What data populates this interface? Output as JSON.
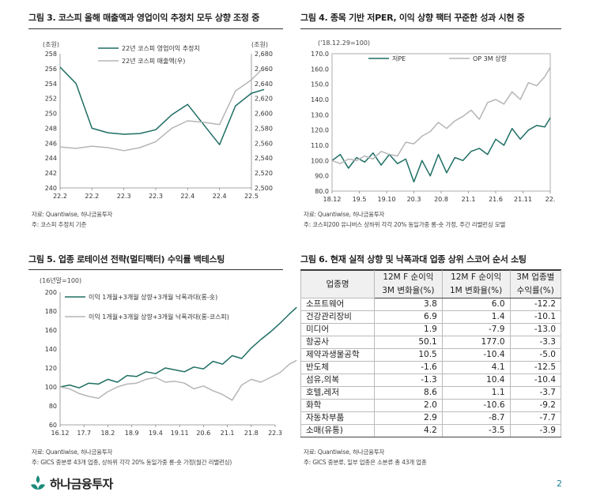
{
  "page_number": "2",
  "logo": {
    "text": "하나금융투자"
  },
  "figure3": {
    "title": "그림 3. 코스피 올해 매출액과 영업이익 추정치 모두 상향 조정 중",
    "unit_left": "(조원)",
    "unit_right": "(조원)",
    "source": "자료: Quantiwise, 하나금융투자",
    "note": "주: 코스피 추정치 기준"
  },
  "figure4": {
    "title": "그림 4. 종목 기반 저PER, 이익 상향 팩터 꾸준한 성과 시현 중",
    "unit": "('18.12.29=100)",
    "source": "자료: Quantiwise, 하나금융투자",
    "note": "주: 코스피200 유니버스 상하위 각각 20% 동일가중 롱-숏 가정, 주간 리밸런싱 모델"
  },
  "figure5": {
    "title": "그림 5. 업종 로테이션 전략(멀티팩터) 수익률 백테스팅",
    "unit": "(16년말=100)",
    "source": "자료: Quantiwise, 하나금융투자",
    "note": "주: GICS 중분류 43개 업종, 상하위 각각 20% 동일가중 롱-숏 가정(월간 리밸런싱)"
  },
  "figure6": {
    "title": "그림 6. 현재 실적 상향 및 낙폭과대 업종 상위 스코어 순서 소팅",
    "headers": {
      "col1": "업종명",
      "col2_line1": "12M F 순이익",
      "col2_line2": "3M 변화율(%)",
      "col3_line1": "12M F 순이익",
      "col3_line2": "1M 변화율(%)",
      "col4_line1": "3M 업종별",
      "col4_line2": "수익률(%)"
    },
    "rows": [
      [
        "소프트웨어",
        "3.8",
        "6.0",
        "-12.2"
      ],
      [
        "건강관리장비",
        "6.9",
        "1.4",
        "-10.1"
      ],
      [
        "미디어",
        "1.9",
        "-7.9",
        "-13.0"
      ],
      [
        "항공사",
        "50.1",
        "177.0",
        "-3.3"
      ],
      [
        "제약과생물공학",
        "10.5",
        "-10.4",
        "-5.0"
      ],
      [
        "반도체",
        "-1.6",
        "4.1",
        "-12.5"
      ],
      [
        "섬유,의복",
        "-1.3",
        "10.4",
        "-10.4"
      ],
      [
        "호텔,레저",
        "8.6",
        "1.1",
        "-3.7"
      ],
      [
        "화학",
        "2.0",
        "-10.6",
        "-9.2"
      ],
      [
        "자동차부품",
        "2.9",
        "-8.7",
        "-7.7"
      ],
      [
        "소매(유통)",
        "4.2",
        "-3.5",
        "-3.9"
      ]
    ],
    "source": "자료: Quantiwise, 하나금융투자",
    "note": "주: GICS 중분류, 일부 업종은 소분류 총 43개 업종"
  },
  "chart_data": [
    {
      "type": "line",
      "categories": [
        "22.2",
        "22.2",
        "22.3",
        "22.3",
        "22.4",
        "22.4",
        "22.5"
      ],
      "ylim": [
        240,
        258
      ],
      "yticks": [
        240,
        242,
        244,
        246,
        248,
        250,
        252,
        254,
        256,
        258
      ],
      "y2lim": [
        2500,
        2680
      ],
      "y2ticks": [
        2500,
        2520,
        2540,
        2560,
        2580,
        2600,
        2620,
        2640,
        2660,
        2680
      ],
      "legend_position": "top-center",
      "series": [
        {
          "name": "22년 코스피 영업이익 추정치",
          "axis": "left",
          "color": "#1e6e63",
          "x": [
            0,
            0.5,
            1,
            1.5,
            2,
            2.5,
            3,
            3.5,
            4,
            4.5,
            5,
            5.5,
            6,
            6.4
          ],
          "values": [
            256.2,
            254,
            248,
            247.4,
            247.2,
            247.3,
            247.8,
            249.8,
            251.2,
            248.5,
            245.8,
            251,
            252.7,
            253.2
          ]
        },
        {
          "name": "22년 코스피 매출액(우)",
          "axis": "right",
          "color": "#b5b5b5",
          "x": [
            0,
            0.5,
            1,
            1.5,
            2,
            2.5,
            3,
            3.5,
            4,
            4.5,
            5,
            5.5,
            6,
            6.4
          ],
          "values": [
            2555,
            2553,
            2556,
            2554,
            2550,
            2554,
            2562,
            2580,
            2590,
            2588,
            2585,
            2630,
            2645,
            2662
          ]
        }
      ]
    },
    {
      "type": "line",
      "categories": [
        "18.12",
        "19.5",
        "19.10",
        "20.3",
        "20.8",
        "21.1",
        "21.6",
        "21.11",
        "22."
      ],
      "ylim": [
        80,
        170
      ],
      "yticks": [
        80.0,
        90.0,
        100.0,
        110.0,
        120.0,
        130.0,
        140.0,
        150.0,
        160.0,
        170.0
      ],
      "legend_position": "top-left",
      "series": [
        {
          "name": "저PE",
          "color": "#1e6e63",
          "x": [
            0,
            0.3,
            0.6,
            0.9,
            1.2,
            1.5,
            1.8,
            2.1,
            2.4,
            2.7,
            3.0,
            3.3,
            3.6,
            3.9,
            4.2,
            4.5,
            4.8,
            5.1,
            5.4,
            5.7,
            6.0,
            6.3,
            6.6,
            6.9,
            7.2,
            7.5,
            7.8,
            8.0
          ],
          "values": [
            100,
            104,
            95,
            102,
            99,
            105,
            97,
            104,
            98,
            101,
            86,
            100,
            90,
            104,
            92,
            102,
            100,
            106,
            108,
            104,
            114,
            110,
            121,
            114,
            120,
            123,
            122,
            128
          ]
        },
        {
          "name": "OP 3M 상향",
          "color": "#b5b5b5",
          "x": [
            0,
            0.3,
            0.6,
            0.9,
            1.2,
            1.5,
            1.8,
            2.1,
            2.4,
            2.7,
            3.0,
            3.3,
            3.6,
            3.9,
            4.2,
            4.5,
            4.8,
            5.1,
            5.4,
            5.7,
            6.0,
            6.3,
            6.6,
            6.9,
            7.2,
            7.5,
            7.8,
            8.0
          ],
          "values": [
            100,
            98,
            101,
            100,
            103,
            101,
            106,
            104,
            103,
            112,
            111,
            116,
            119,
            125,
            121,
            126,
            129,
            133,
            127,
            138,
            140,
            137,
            145,
            140,
            151,
            149,
            155,
            161
          ]
        }
      ]
    },
    {
      "type": "line",
      "categories": [
        "16.12",
        "17.7",
        "18.2",
        "18.9",
        "19.4",
        "19.11",
        "20.6",
        "21.1",
        "21.8",
        "22.3"
      ],
      "ylim": [
        60,
        200
      ],
      "yticks": [
        60,
        80,
        100,
        120,
        140,
        160,
        180,
        200
      ],
      "legend_position": "top-left",
      "series": [
        {
          "name": "이익 1개월+3개월 상향+3개월 낙폭과대(롱-숏)",
          "color": "#1e6e63",
          "x": [
            0,
            0.4,
            0.8,
            1.2,
            1.6,
            2.0,
            2.4,
            2.8,
            3.2,
            3.6,
            4.0,
            4.4,
            4.8,
            5.2,
            5.6,
            6.0,
            6.4,
            6.8,
            7.2,
            7.6,
            8.0,
            8.4,
            8.8,
            9.2,
            9.6,
            9.9
          ],
          "values": [
            100,
            102,
            99,
            104,
            103,
            108,
            105,
            112,
            111,
            116,
            114,
            120,
            118,
            116,
            121,
            119,
            127,
            124,
            133,
            130,
            141,
            150,
            158,
            167,
            177,
            184
          ]
        },
        {
          "name": "이익 1개월+3개월 상향+3개월 낙폭과대(롱-코스피)",
          "color": "#b5b5b5",
          "x": [
            0,
            0.4,
            0.8,
            1.2,
            1.6,
            2.0,
            2.4,
            2.8,
            3.2,
            3.6,
            4.0,
            4.4,
            4.8,
            5.2,
            5.6,
            6.0,
            6.4,
            6.8,
            7.2,
            7.6,
            8.0,
            8.4,
            8.8,
            9.2,
            9.6,
            9.9
          ],
          "values": [
            100,
            98,
            93,
            90,
            88,
            95,
            100,
            103,
            104,
            108,
            110,
            105,
            106,
            104,
            98,
            101,
            96,
            92,
            86,
            102,
            108,
            105,
            110,
            115,
            124,
            128
          ]
        }
      ]
    }
  ]
}
